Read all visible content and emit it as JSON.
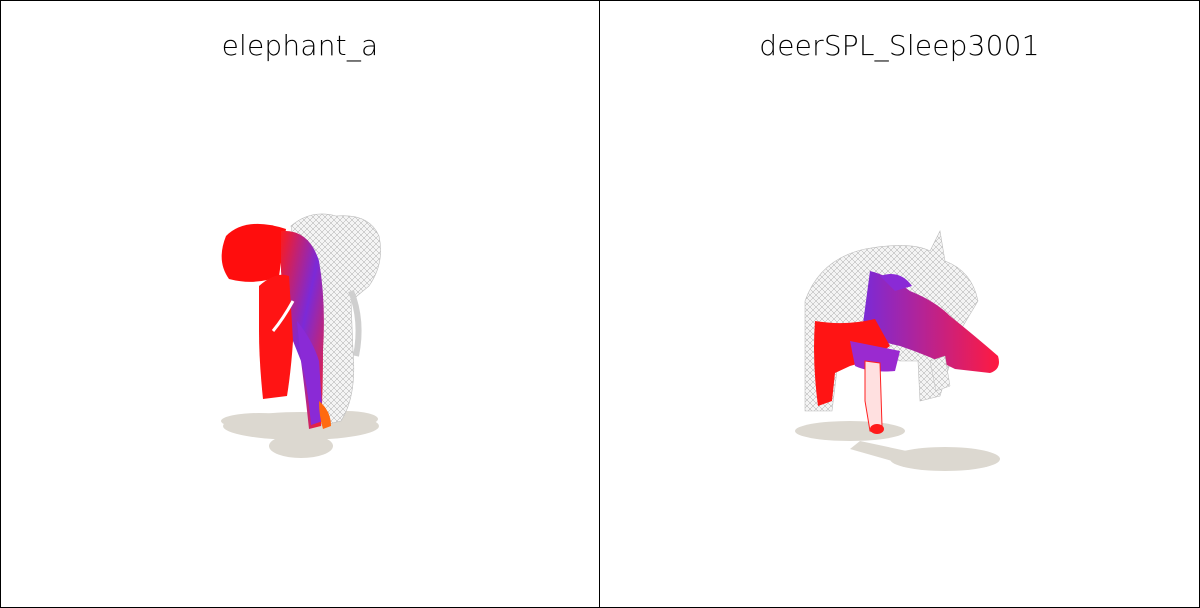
{
  "panels": [
    {
      "title": "elephant_a",
      "subject": "elephant-mesh"
    },
    {
      "title": "deerSPL_Sleep3001",
      "subject": "deer-mesh"
    }
  ],
  "colors": {
    "border": "#000000",
    "shadow": "#dcd8d0",
    "red": "#ff1010",
    "purple": "#8a28d8",
    "mesh": "#f2f2f2",
    "mesh_line": "#9a9a9a",
    "orange": "#ff6a10"
  }
}
